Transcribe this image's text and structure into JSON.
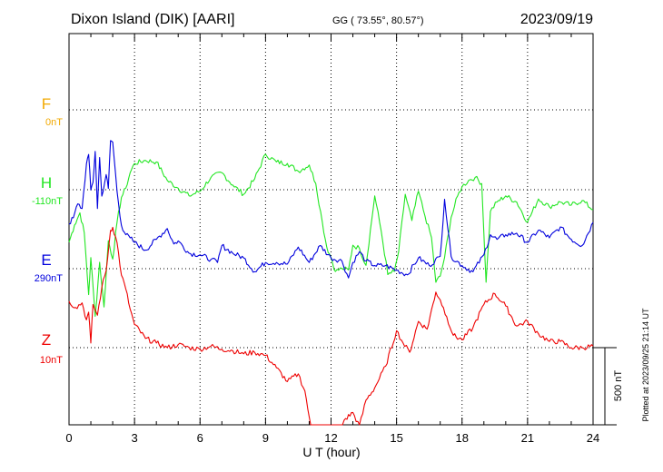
{
  "header": {
    "station": "Dixon Island (DIK)  [AARI]",
    "coords": "GG ( 73.55°,  80.57°)",
    "date": "2023/09/19"
  },
  "footer": {
    "plotted": "Plotted at 2023/09/25 21:14 UT"
  },
  "chart_data": {
    "type": "line",
    "xlabel": "U T (hour)",
    "xlim": [
      0,
      24
    ],
    "x_ticks": [
      "0",
      "3",
      "6",
      "9",
      "12",
      "15",
      "18",
      "21",
      "24"
    ],
    "grid": true,
    "scale_bar": {
      "label": "500 nT",
      "value_nT": 500
    },
    "series": [
      {
        "name": "F",
        "baseline_label": "0nT",
        "color": "#f2a900",
        "x": [],
        "values": []
      },
      {
        "name": "H",
        "baseline_label": "-110nT",
        "color": "#22e622",
        "x": [
          0,
          0.25,
          0.5,
          0.7,
          0.9,
          1.0,
          1.2,
          1.4,
          1.6,
          1.8,
          2.0,
          2.2,
          2.4,
          2.6,
          2.8,
          3.0,
          3.5,
          4.0,
          4.5,
          5.0,
          5.5,
          6.0,
          6.5,
          7.0,
          7.5,
          8.0,
          8.5,
          9.0,
          9.5,
          10.0,
          10.5,
          11.0,
          11.3,
          11.6,
          11.8,
          12.0,
          12.2,
          12.5,
          12.8,
          13.0,
          13.3,
          13.6,
          14.0,
          14.3,
          14.6,
          14.9,
          15.1,
          15.4,
          15.7,
          16.0,
          16.3,
          16.6,
          16.8,
          17.0,
          17.2,
          17.5,
          17.8,
          18.0,
          18.3,
          18.6,
          18.9,
          19.1,
          19.3,
          19.6,
          20.0,
          20.5,
          21.0,
          21.5,
          22.0,
          22.5,
          23.0,
          23.5,
          24.0
        ],
        "values": [
          -340,
          -230,
          -150,
          -280,
          -680,
          -440,
          -820,
          -470,
          -760,
          -330,
          -450,
          -210,
          -50,
          10,
          110,
          170,
          190,
          180,
          60,
          10,
          -40,
          -10,
          80,
          110,
          30,
          -30,
          70,
          230,
          180,
          170,
          120,
          160,
          40,
          -210,
          -370,
          -440,
          -530,
          -510,
          -520,
          -360,
          -380,
          -490,
          -40,
          -270,
          -550,
          -530,
          -400,
          -30,
          -200,
          -10,
          -170,
          -310,
          -600,
          -560,
          -440,
          -180,
          -40,
          20,
          60,
          80,
          40,
          -600,
          -140,
          -80,
          -40,
          -80,
          -210,
          -60,
          -110,
          -80,
          -100,
          -70,
          -130
        ]
      },
      {
        "name": "E",
        "baseline_label": "290nT",
        "color": "#0000dd",
        "x": [
          0,
          0.2,
          0.4,
          0.6,
          0.8,
          0.9,
          1.0,
          1.1,
          1.2,
          1.3,
          1.4,
          1.5,
          1.7,
          1.8,
          1.9,
          2.0,
          2.2,
          2.4,
          2.6,
          2.8,
          3.0,
          3.5,
          4.0,
          4.5,
          4.8,
          5.0,
          5.5,
          6.0,
          6.5,
          6.8,
          7.0,
          7.5,
          8.0,
          8.5,
          9.0,
          9.5,
          10.0,
          10.5,
          11.0,
          11.5,
          12.0,
          12.5,
          12.8,
          13.0,
          13.3,
          13.6,
          14.0,
          14.5,
          15.0,
          15.5,
          16.0,
          16.5,
          17.0,
          17.2,
          17.5,
          18.0,
          18.5,
          19.0,
          19.3,
          19.6,
          20.0,
          20.5,
          21.0,
          21.5,
          22.0,
          22.5,
          23.0,
          23.5,
          24.0
        ],
        "values": [
          290,
          330,
          420,
          390,
          680,
          740,
          510,
          560,
          760,
          390,
          720,
          470,
          610,
          520,
          830,
          820,
          500,
          280,
          220,
          200,
          170,
          120,
          190,
          260,
          160,
          180,
          100,
          90,
          60,
          40,
          150,
          100,
          70,
          -20,
          40,
          40,
          30,
          140,
          40,
          150,
          70,
          50,
          -60,
          40,
          110,
          50,
          20,
          20,
          -10,
          -40,
          70,
          20,
          80,
          450,
          80,
          20,
          -20,
          90,
          220,
          190,
          220,
          230,
          170,
          250,
          200,
          270,
          190,
          150,
          300
        ]
      },
      {
        "name": "Z",
        "baseline_label": "10nT",
        "color": "#ee0000",
        "x": [
          0,
          0.3,
          0.6,
          0.8,
          0.9,
          1.0,
          1.1,
          1.3,
          1.5,
          1.7,
          1.9,
          2.0,
          2.2,
          2.4,
          2.6,
          2.8,
          3.0,
          3.5,
          4.0,
          4.5,
          5.0,
          5.5,
          6.0,
          6.5,
          7.0,
          7.5,
          8.0,
          8.5,
          9.0,
          9.5,
          10.0,
          10.5,
          10.8,
          11.0,
          11.2,
          11.4,
          11.6,
          11.8,
          12.0,
          12.3,
          12.6,
          13.0,
          13.3,
          13.6,
          14.0,
          14.5,
          15.0,
          15.3,
          15.6,
          16.0,
          16.4,
          16.8,
          17.0,
          17.3,
          17.6,
          18.0,
          18.5,
          19.0,
          19.5,
          20.0,
          20.5,
          21.0,
          21.5,
          22.0,
          22.5,
          23.0,
          23.5,
          24.0
        ],
        "values": [
          300,
          260,
          290,
          180,
          230,
          30,
          280,
          210,
          390,
          500,
          760,
          780,
          680,
          470,
          380,
          250,
          150,
          60,
          30,
          0,
          20,
          0,
          -10,
          10,
          -10,
          -20,
          -40,
          -30,
          -50,
          -130,
          -220,
          -170,
          -280,
          -450,
          -720,
          -590,
          -540,
          -620,
          -830,
          -660,
          -470,
          -420,
          -510,
          -340,
          -260,
          -120,
          110,
          30,
          -30,
          170,
          120,
          360,
          310,
          200,
          80,
          50,
          130,
          280,
          350,
          270,
          140,
          170,
          90,
          40,
          40,
          0,
          0,
          10
        ]
      }
    ]
  }
}
